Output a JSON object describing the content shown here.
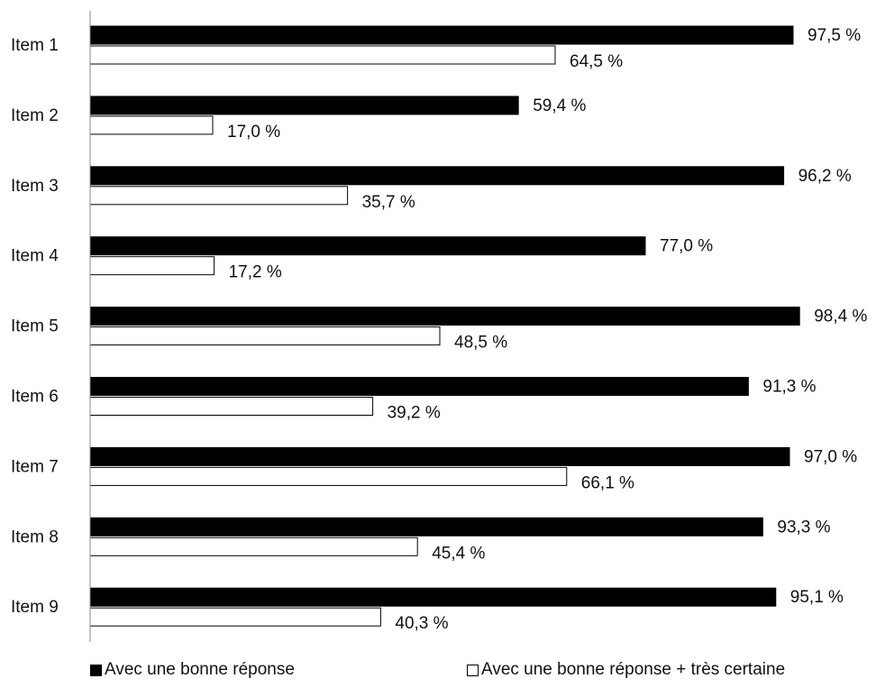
{
  "chart_data": {
    "type": "bar",
    "orientation": "horizontal",
    "categories": [
      "Item 1",
      "Item 2",
      "Item 3",
      "Item 4",
      "Item 5",
      "Item 6",
      "Item 7",
      "Item 8",
      "Item 9"
    ],
    "series": [
      {
        "name": "Avec une bonne réponse",
        "color": "#000000",
        "values": [
          97.5,
          59.4,
          96.2,
          77.0,
          98.4,
          91.3,
          97.0,
          93.3,
          95.1
        ],
        "labels": [
          "97,5 %",
          "59,4 %",
          "96,2 %",
          "77,0 %",
          "98,4 %",
          "91,3 %",
          "97,0 %",
          "93,3 %",
          "95,1 %"
        ]
      },
      {
        "name": "Avec une bonne réponse + très certaine",
        "color": "#ffffff",
        "values": [
          64.5,
          17.0,
          35.7,
          17.2,
          48.5,
          39.2,
          66.1,
          45.4,
          40.3
        ],
        "labels": [
          "64,5 %",
          "17,0 %",
          "35,7 %",
          "17,2 %",
          "48,5 %",
          "39,2 %",
          "66,1 %",
          "45,4 %",
          "40,3 %"
        ]
      }
    ],
    "xlim": [
      0,
      100
    ],
    "grid": false,
    "legend": "bottom",
    "legend_markers": [
      "■",
      "□"
    ]
  }
}
